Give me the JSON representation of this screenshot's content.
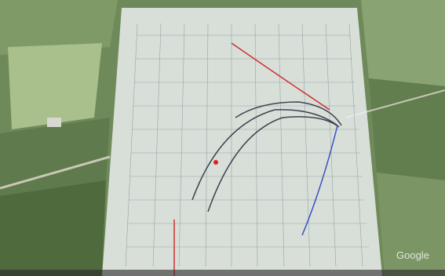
{
  "watermark": "Google"
}
